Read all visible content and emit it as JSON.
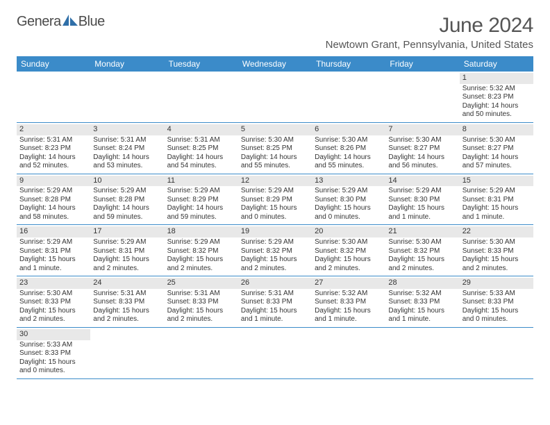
{
  "logo": {
    "text_left": "Genera",
    "text_right": "Blue"
  },
  "header": {
    "month_title": "June 2024",
    "location": "Newtown Grant, Pennsylvania, United States"
  },
  "colors": {
    "header_bg": "#3b8bc9",
    "header_text": "#ffffff",
    "daynum_bg": "#e8e8e8",
    "row_border": "#3b8bc9",
    "body_text": "#333333",
    "title_text": "#555555"
  },
  "weekdays": [
    "Sunday",
    "Monday",
    "Tuesday",
    "Wednesday",
    "Thursday",
    "Friday",
    "Saturday"
  ],
  "weeks": [
    [
      null,
      null,
      null,
      null,
      null,
      null,
      {
        "n": "1",
        "sunrise": "5:32 AM",
        "sunset": "8:23 PM",
        "daylight": "14 hours and 50 minutes."
      }
    ],
    [
      {
        "n": "2",
        "sunrise": "5:31 AM",
        "sunset": "8:23 PM",
        "daylight": "14 hours and 52 minutes."
      },
      {
        "n": "3",
        "sunrise": "5:31 AM",
        "sunset": "8:24 PM",
        "daylight": "14 hours and 53 minutes."
      },
      {
        "n": "4",
        "sunrise": "5:31 AM",
        "sunset": "8:25 PM",
        "daylight": "14 hours and 54 minutes."
      },
      {
        "n": "5",
        "sunrise": "5:30 AM",
        "sunset": "8:25 PM",
        "daylight": "14 hours and 55 minutes."
      },
      {
        "n": "6",
        "sunrise": "5:30 AM",
        "sunset": "8:26 PM",
        "daylight": "14 hours and 55 minutes."
      },
      {
        "n": "7",
        "sunrise": "5:30 AM",
        "sunset": "8:27 PM",
        "daylight": "14 hours and 56 minutes."
      },
      {
        "n": "8",
        "sunrise": "5:30 AM",
        "sunset": "8:27 PM",
        "daylight": "14 hours and 57 minutes."
      }
    ],
    [
      {
        "n": "9",
        "sunrise": "5:29 AM",
        "sunset": "8:28 PM",
        "daylight": "14 hours and 58 minutes."
      },
      {
        "n": "10",
        "sunrise": "5:29 AM",
        "sunset": "8:28 PM",
        "daylight": "14 hours and 59 minutes."
      },
      {
        "n": "11",
        "sunrise": "5:29 AM",
        "sunset": "8:29 PM",
        "daylight": "14 hours and 59 minutes."
      },
      {
        "n": "12",
        "sunrise": "5:29 AM",
        "sunset": "8:29 PM",
        "daylight": "15 hours and 0 minutes."
      },
      {
        "n": "13",
        "sunrise": "5:29 AM",
        "sunset": "8:30 PM",
        "daylight": "15 hours and 0 minutes."
      },
      {
        "n": "14",
        "sunrise": "5:29 AM",
        "sunset": "8:30 PM",
        "daylight": "15 hours and 1 minute."
      },
      {
        "n": "15",
        "sunrise": "5:29 AM",
        "sunset": "8:31 PM",
        "daylight": "15 hours and 1 minute."
      }
    ],
    [
      {
        "n": "16",
        "sunrise": "5:29 AM",
        "sunset": "8:31 PM",
        "daylight": "15 hours and 1 minute."
      },
      {
        "n": "17",
        "sunrise": "5:29 AM",
        "sunset": "8:31 PM",
        "daylight": "15 hours and 2 minutes."
      },
      {
        "n": "18",
        "sunrise": "5:29 AM",
        "sunset": "8:32 PM",
        "daylight": "15 hours and 2 minutes."
      },
      {
        "n": "19",
        "sunrise": "5:29 AM",
        "sunset": "8:32 PM",
        "daylight": "15 hours and 2 minutes."
      },
      {
        "n": "20",
        "sunrise": "5:30 AM",
        "sunset": "8:32 PM",
        "daylight": "15 hours and 2 minutes."
      },
      {
        "n": "21",
        "sunrise": "5:30 AM",
        "sunset": "8:32 PM",
        "daylight": "15 hours and 2 minutes."
      },
      {
        "n": "22",
        "sunrise": "5:30 AM",
        "sunset": "8:33 PM",
        "daylight": "15 hours and 2 minutes."
      }
    ],
    [
      {
        "n": "23",
        "sunrise": "5:30 AM",
        "sunset": "8:33 PM",
        "daylight": "15 hours and 2 minutes."
      },
      {
        "n": "24",
        "sunrise": "5:31 AM",
        "sunset": "8:33 PM",
        "daylight": "15 hours and 2 minutes."
      },
      {
        "n": "25",
        "sunrise": "5:31 AM",
        "sunset": "8:33 PM",
        "daylight": "15 hours and 2 minutes."
      },
      {
        "n": "26",
        "sunrise": "5:31 AM",
        "sunset": "8:33 PM",
        "daylight": "15 hours and 1 minute."
      },
      {
        "n": "27",
        "sunrise": "5:32 AM",
        "sunset": "8:33 PM",
        "daylight": "15 hours and 1 minute."
      },
      {
        "n": "28",
        "sunrise": "5:32 AM",
        "sunset": "8:33 PM",
        "daylight": "15 hours and 1 minute."
      },
      {
        "n": "29",
        "sunrise": "5:33 AM",
        "sunset": "8:33 PM",
        "daylight": "15 hours and 0 minutes."
      }
    ],
    [
      {
        "n": "30",
        "sunrise": "5:33 AM",
        "sunset": "8:33 PM",
        "daylight": "15 hours and 0 minutes."
      },
      null,
      null,
      null,
      null,
      null,
      null
    ]
  ],
  "labels": {
    "sunrise_prefix": "Sunrise: ",
    "sunset_prefix": "Sunset: ",
    "daylight_prefix": "Daylight: "
  }
}
